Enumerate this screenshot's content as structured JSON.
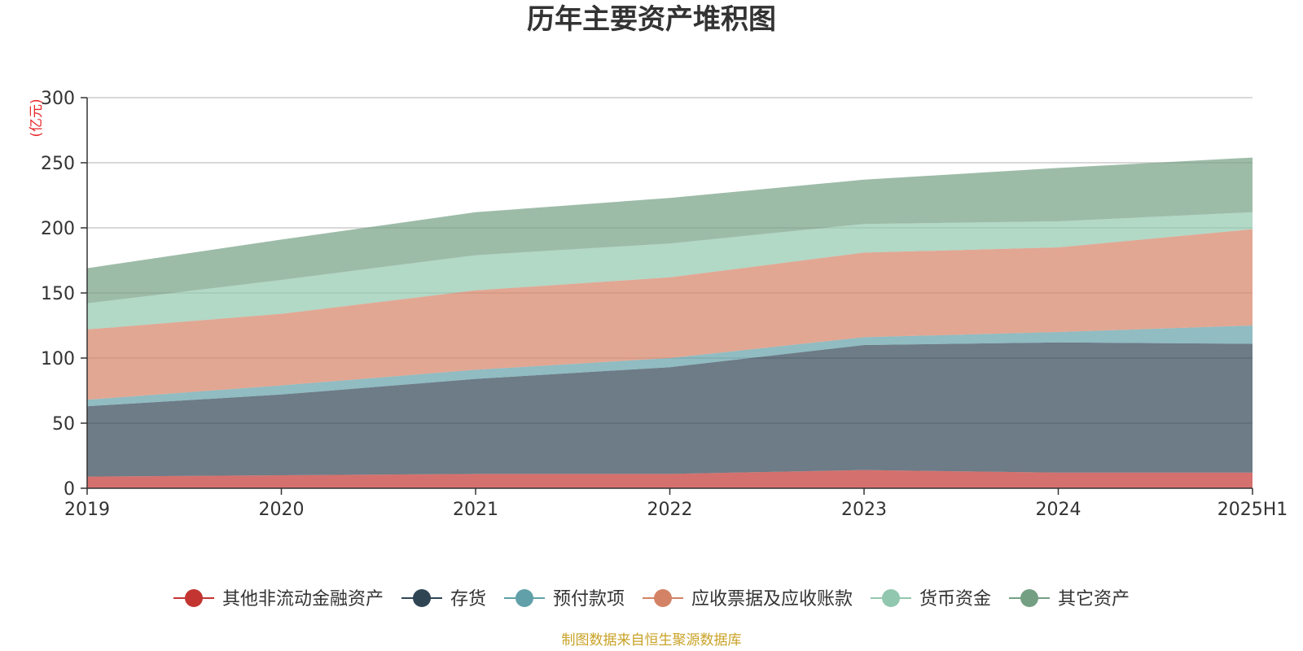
{
  "chart_data": {
    "type": "area",
    "stacked": true,
    "title": "历年主要资产堆积图",
    "unit_label": "(亿元)",
    "categories": [
      "2019",
      "2020",
      "2021",
      "2022",
      "2023",
      "2024",
      "2025H1"
    ],
    "ylim": [
      0,
      300
    ],
    "yticks": [
      0,
      50,
      100,
      150,
      200,
      250,
      300
    ],
    "grid": true,
    "legend_position": "bottom",
    "series": [
      {
        "name": "其他非流动金融资产",
        "color": "#c23531",
        "values": [
          9,
          10,
          11,
          11,
          14,
          12,
          12
        ]
      },
      {
        "name": "存货",
        "color": "#2f4554",
        "values": [
          54,
          62,
          73,
          82,
          96,
          100,
          99
        ]
      },
      {
        "name": "预付款项",
        "color": "#61a0a8",
        "values": [
          5,
          7,
          7,
          7,
          6,
          8,
          14
        ]
      },
      {
        "name": "应收票据及应收账款",
        "color": "#d48265",
        "values": [
          54,
          55,
          61,
          62,
          65,
          65,
          74
        ]
      },
      {
        "name": "货币资金",
        "color": "#91c7ae",
        "values": [
          20,
          26,
          27,
          26,
          22,
          20,
          13
        ]
      },
      {
        "name": "其它资产",
        "color": "#749f83",
        "values": [
          27,
          31,
          33,
          35,
          34,
          41,
          42
        ]
      }
    ]
  },
  "source_note": "制图数据来自恒生聚源数据库"
}
